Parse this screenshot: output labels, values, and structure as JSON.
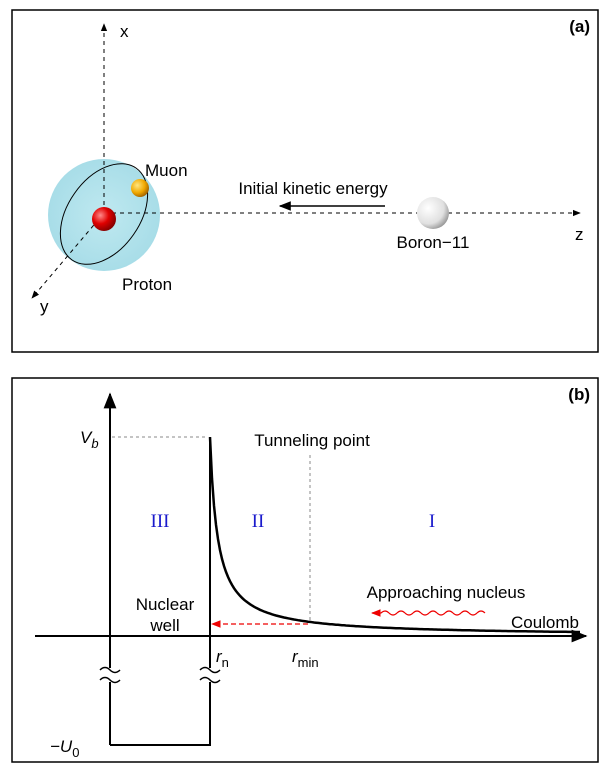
{
  "panel_a": {
    "tag": "(a)",
    "axis_x": "x",
    "axis_y": "y",
    "axis_z": "z",
    "muon": "Muon",
    "proton": "Proton",
    "boron": "Boron−11",
    "arrow_label": "Initial kinetic energy"
  },
  "panel_b": {
    "tag": "(b)",
    "vb": {
      "main": "V",
      "sub": "b"
    },
    "u0": {
      "prefix": "−U",
      "sub": "0"
    },
    "rn": {
      "main": "r",
      "sub": "n"
    },
    "rmin": {
      "main": "r",
      "sub": "min"
    },
    "tunneling": "Tunneling point",
    "region_3": "III",
    "region_2": "II",
    "region_1": "I",
    "approaching": "Approaching nucleus",
    "well": [
      "Nuclear",
      "well"
    ],
    "coulomb": "Coulomb"
  }
}
